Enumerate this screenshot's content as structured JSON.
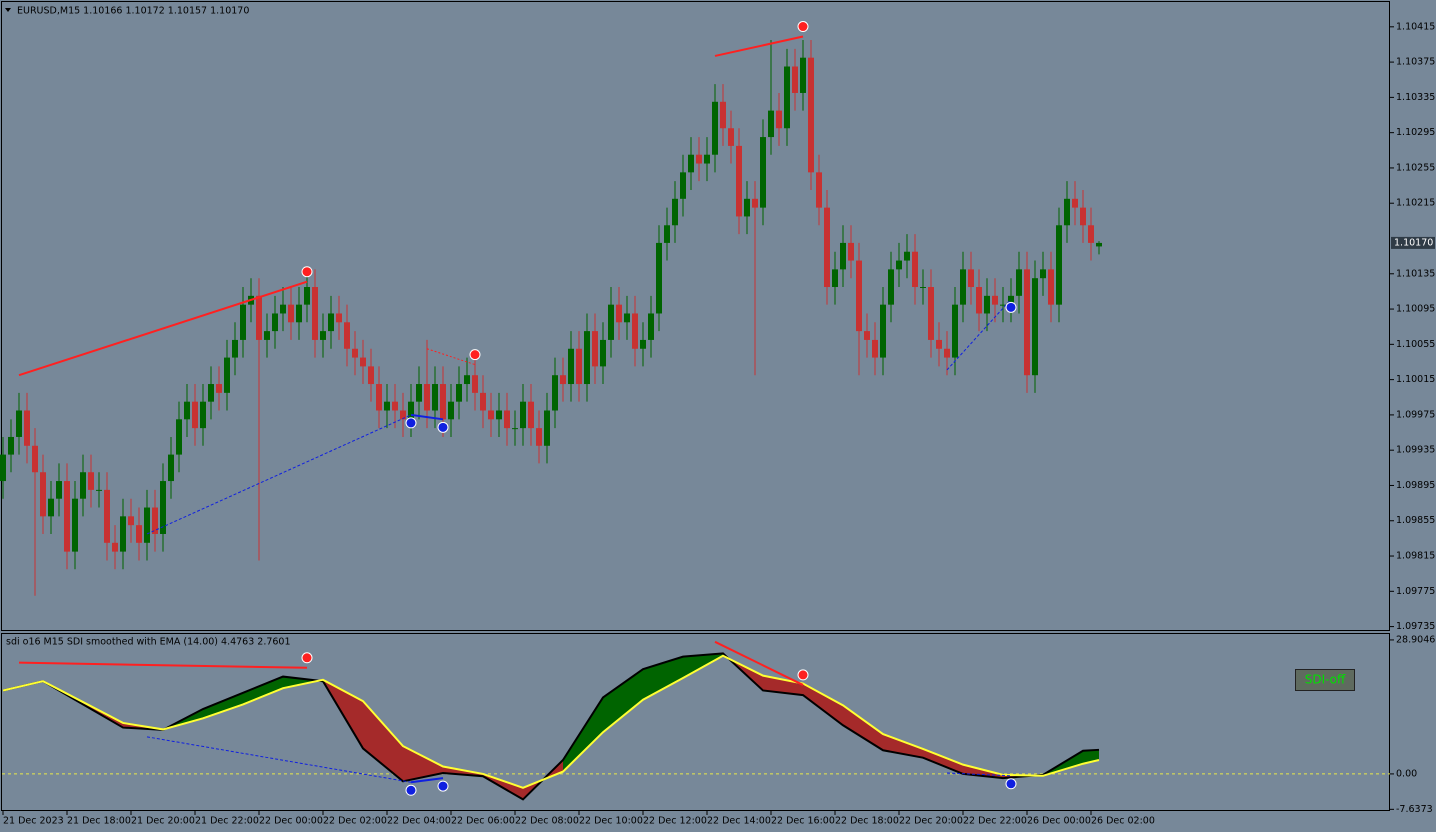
{
  "chart_data": [
    {
      "type": "candlestick",
      "title": "EURUSD,M15  1.10166 1.10172 1.10157 1.10170",
      "categories": [
        "21 Dec 2023",
        null,
        null,
        null,
        null,
        null,
        null,
        null,
        "21 Dec 18:00",
        null,
        null,
        null,
        null,
        null,
        null,
        null,
        "21 Dec 20:00",
        null,
        null,
        null,
        null,
        null,
        null,
        null,
        "21 Dec 22:00",
        null,
        null,
        null,
        null,
        null,
        null,
        null,
        "22 Dec 00:00",
        null,
        null,
        null,
        null,
        null,
        null,
        null,
        "22 Dec 02:00",
        null,
        null,
        null,
        null,
        null,
        null,
        null,
        "22 Dec 04:00",
        null,
        null,
        null,
        null,
        null,
        null,
        null,
        "22 Dec 06:00",
        null,
        null,
        null,
        null,
        null,
        null,
        null,
        "22 Dec 08:00",
        null,
        null,
        null,
        null,
        null,
        null,
        null,
        "22 Dec 10:00",
        null,
        null,
        null,
        null,
        null,
        null,
        null,
        "22 Dec 12:00",
        null,
        null,
        null,
        null,
        null,
        null,
        null,
        "22 Dec 14:00",
        null,
        null,
        null,
        null,
        null,
        null,
        null,
        "22 Dec 16:00",
        null,
        null,
        null,
        null,
        null,
        null,
        null,
        "22 Dec 18:00",
        null,
        null,
        null,
        null,
        null,
        null,
        null,
        "22 Dec 20:00",
        null,
        null,
        null,
        null,
        null,
        null,
        null,
        "22 Dec 22:00",
        null,
        null,
        null,
        null,
        null,
        null,
        null,
        "26 Dec 00:00",
        null,
        null,
        null,
        null,
        null,
        null,
        null,
        "26 Dec 02:00",
        null
      ],
      "open": [
        1.099,
        1.0993,
        1.0995,
        1.0998,
        1.0994,
        1.0991,
        1.0986,
        1.0988,
        1.099,
        1.0982,
        1.0988,
        1.0991,
        1.0989,
        1.0989,
        1.0983,
        1.0982,
        1.0986,
        1.0985,
        1.0983,
        1.0987,
        1.0984,
        1.099,
        1.0993,
        1.0997,
        1.0999,
        1.0996,
        1.0999,
        1.1001,
        1.1,
        1.1004,
        1.1006,
        1.101,
        1.1011,
        1.1006,
        1.1007,
        1.1009,
        1.101,
        1.1008,
        1.101,
        1.1012,
        1.1006,
        1.1007,
        1.1009,
        1.1008,
        1.1005,
        1.1004,
        1.1003,
        1.1001,
        1.0998,
        1.0999,
        1.0998,
        1.0997,
        1.0999,
        1.1001,
        1.0998,
        1.1001,
        1.0997,
        1.0999,
        1.1001,
        1.1002,
        1.1,
        1.0998,
        1.0997,
        1.0998,
        1.0996,
        1.0996,
        1.0999,
        1.0996,
        1.0994,
        1.0998,
        1.1002,
        1.1001,
        1.1005,
        1.1001,
        1.1007,
        1.1003,
        1.1006,
        1.101,
        1.1008,
        1.1009,
        1.1005,
        1.1006,
        1.1009,
        1.1017,
        1.1019,
        1.1022,
        1.1025,
        1.1027,
        1.1026,
        1.1027,
        1.1033,
        1.103,
        1.1028,
        1.102,
        1.1022,
        1.1021,
        1.1029,
        1.1032,
        1.103,
        1.1037,
        1.1034,
        1.1038,
        1.1025,
        1.1021,
        1.1012,
        1.1014,
        1.1017,
        1.1015,
        1.1007,
        1.1006,
        1.1004,
        1.101,
        1.1014,
        1.1015,
        1.1016,
        1.1012,
        1.1012,
        1.1006,
        1.1005,
        1.1004,
        1.101,
        1.1014,
        1.1012,
        1.1009,
        1.1011,
        1.101,
        1.101,
        1.1011,
        1.1014,
        1.1002,
        1.1013,
        1.1014,
        1.101,
        1.1019,
        1.1022,
        1.1021,
        1.1019,
        1.10166
      ],
      "high": [
        1.0995,
        1.0997,
        1.1,
        1.1,
        1.0996,
        1.0993,
        1.099,
        1.0992,
        1.0992,
        1.099,
        1.0993,
        1.0993,
        1.0991,
        1.0991,
        1.0985,
        1.0988,
        1.0988,
        1.0987,
        1.0989,
        1.0989,
        1.0992,
        1.0995,
        1.0999,
        1.1001,
        1.1001,
        1.1001,
        1.1003,
        1.1003,
        1.1006,
        1.1008,
        1.1012,
        1.1013,
        1.1013,
        1.1009,
        1.1011,
        1.1012,
        1.1012,
        1.1012,
        1.1014,
        1.1014,
        1.1009,
        1.1011,
        1.1011,
        1.101,
        1.1007,
        1.1006,
        1.1005,
        1.1003,
        1.1001,
        1.1001,
        1.1,
        1.1001,
        1.1003,
        1.1006,
        1.1003,
        1.1003,
        1.1001,
        1.1003,
        1.1004,
        1.1004,
        1.1002,
        1.1,
        1.1,
        1.1,
        1.0998,
        1.1001,
        1.1001,
        1.0998,
        1.1,
        1.1004,
        1.1004,
        1.1007,
        1.1007,
        1.1009,
        1.1009,
        1.1008,
        1.1012,
        1.1012,
        1.1011,
        1.1011,
        1.1008,
        1.1011,
        1.1019,
        1.1021,
        1.1024,
        1.1027,
        1.1029,
        1.1029,
        1.1029,
        1.1035,
        1.1035,
        1.1032,
        1.103,
        1.1024,
        1.1024,
        1.1031,
        1.104,
        1.1034,
        1.1039,
        1.1039,
        1.104,
        1.104,
        1.1027,
        1.1023,
        1.1016,
        1.1019,
        1.1019,
        1.1017,
        1.1009,
        1.1008,
        1.1012,
        1.1016,
        1.1017,
        1.1018,
        1.1018,
        1.1014,
        1.1014,
        1.1008,
        1.1007,
        1.1012,
        1.1016,
        1.1016,
        1.1014,
        1.1013,
        1.1013,
        1.1012,
        1.1013,
        1.1016,
        1.1016,
        1.1015,
        1.1016,
        1.1016,
        1.1021,
        1.1024,
        1.1024,
        1.1023,
        1.1021,
        1.10172
      ],
      "low": [
        1.0988,
        1.0991,
        1.0993,
        1.0992,
        1.0977,
        1.0984,
        1.0984,
        1.0986,
        1.098,
        1.098,
        1.0986,
        1.0987,
        1.0987,
        1.0981,
        1.098,
        1.098,
        1.0983,
        1.0981,
        1.0981,
        1.0982,
        1.0982,
        1.0988,
        1.0991,
        1.0995,
        1.0994,
        1.0994,
        1.0997,
        1.0998,
        1.0998,
        1.1002,
        1.1004,
        1.1008,
        1.0981,
        1.1004,
        1.1005,
        1.1007,
        1.1006,
        1.1006,
        1.1008,
        1.1004,
        1.1004,
        1.1005,
        1.1006,
        1.1003,
        1.1002,
        1.1001,
        1.0999,
        1.0996,
        1.0996,
        1.0996,
        1.0995,
        1.0995,
        1.0997,
        1.0996,
        1.0996,
        1.0995,
        1.0995,
        1.0997,
        1.0999,
        1.0998,
        1.0996,
        1.0995,
        1.0995,
        1.0994,
        1.0994,
        1.0994,
        1.0994,
        1.0992,
        1.0992,
        1.0996,
        1.0999,
        1.0999,
        1.0999,
        1.0999,
        1.1001,
        1.1001,
        1.1004,
        1.1006,
        1.1006,
        1.1003,
        1.1003,
        1.1004,
        1.1007,
        1.1015,
        1.1017,
        1.102,
        1.1023,
        1.1024,
        1.1024,
        1.1025,
        1.1028,
        1.1026,
        1.1018,
        1.1018,
        1.1002,
        1.1019,
        1.1027,
        1.1028,
        1.1028,
        1.1032,
        1.1032,
        1.1023,
        1.1019,
        1.101,
        1.101,
        1.1012,
        1.1013,
        1.1002,
        1.1004,
        1.1002,
        1.1002,
        1.1008,
        1.1012,
        1.1013,
        1.101,
        1.101,
        1.1004,
        1.1003,
        1.1002,
        1.1002,
        1.1008,
        1.101,
        1.1007,
        1.1007,
        1.1008,
        1.1008,
        1.1008,
        1.1009,
        1.1,
        1.1,
        1.1011,
        1.1008,
        1.1008,
        1.1017,
        1.1019,
        1.1017,
        1.1015,
        1.10157
      ],
      "close": [
        1.0993,
        1.0995,
        1.0998,
        1.0994,
        1.0991,
        1.0986,
        1.0988,
        1.099,
        1.0982,
        1.0988,
        1.0991,
        1.0989,
        1.0989,
        1.0983,
        1.0982,
        1.0986,
        1.0985,
        1.0983,
        1.0987,
        1.0984,
        1.099,
        1.0993,
        1.0997,
        1.0999,
        1.0996,
        1.0999,
        1.1001,
        1.1,
        1.1004,
        1.1006,
        1.101,
        1.1011,
        1.1006,
        1.1007,
        1.1009,
        1.101,
        1.1008,
        1.101,
        1.1012,
        1.1006,
        1.1007,
        1.1009,
        1.1008,
        1.1005,
        1.1004,
        1.1003,
        1.1001,
        1.0998,
        1.0999,
        1.0998,
        1.0997,
        1.0999,
        1.1001,
        1.0998,
        1.1001,
        1.0997,
        1.0999,
        1.1001,
        1.1002,
        1.1,
        1.0998,
        1.0997,
        1.0998,
        1.0996,
        1.0996,
        1.0999,
        1.0996,
        1.0994,
        1.0998,
        1.1002,
        1.1001,
        1.1005,
        1.1001,
        1.1007,
        1.1003,
        1.1006,
        1.101,
        1.1008,
        1.1009,
        1.1005,
        1.1006,
        1.1009,
        1.1017,
        1.1019,
        1.1022,
        1.1025,
        1.1027,
        1.1026,
        1.1027,
        1.1033,
        1.103,
        1.1028,
        1.102,
        1.1022,
        1.1021,
        1.1029,
        1.1032,
        1.103,
        1.1037,
        1.1034,
        1.1038,
        1.1025,
        1.1021,
        1.1012,
        1.1014,
        1.1017,
        1.1015,
        1.1007,
        1.1006,
        1.1004,
        1.101,
        1.1014,
        1.1015,
        1.1016,
        1.1012,
        1.1012,
        1.1006,
        1.1005,
        1.1004,
        1.101,
        1.1014,
        1.1012,
        1.1009,
        1.1011,
        1.101,
        1.101,
        1.1011,
        1.1014,
        1.1002,
        1.1013,
        1.1014,
        1.101,
        1.1019,
        1.1022,
        1.1021,
        1.1019,
        1.1017,
        1.1017
      ],
      "up_color": "#006400",
      "down_color": "#c83232",
      "ylim": [
        1.0973,
        1.10442
      ],
      "yticks": [
        1.10415,
        1.10375,
        1.10335,
        1.10295,
        1.10255,
        1.10215,
        1.10135,
        1.10095,
        1.10055,
        1.10015,
        1.09975,
        1.09935,
        1.09895,
        1.09855,
        1.09815,
        1.09775,
        1.09735
      ],
      "price_label": {
        "value": 1.1017,
        "label": "1.10170"
      },
      "divergences": [
        {
          "x": [
            2,
            38
          ],
          "y": [
            1.1002,
            1.10126
          ],
          "color": "#ff2020",
          "dash": "none"
        },
        {
          "x": [
            89,
            100
          ],
          "y": [
            1.10382,
            1.10404
          ],
          "color": "#ff2020",
          "dash": "none"
        },
        {
          "x": [
            18,
            51
          ],
          "y": [
            1.0984,
            1.09975
          ],
          "color": "#1020e0",
          "dash": "3 2"
        },
        {
          "x": [
            51,
            55
          ],
          "y": [
            1.09975,
            1.0997
          ],
          "color": "#1020e0",
          "dash": "none"
        },
        {
          "x": [
            53,
            59
          ],
          "y": [
            1.1005,
            1.10032
          ],
          "color": "#ff2020",
          "dash": "2 2"
        },
        {
          "x": [
            118,
            126
          ],
          "y": [
            1.10026,
            1.10106
          ],
          "color": "#1020e0",
          "dash": "3 2"
        }
      ]
    },
    {
      "type": "line",
      "title": "sdi o16 M15 SDI smoothed with EMA (14.00) 4.4763 2.7601",
      "x": [
        0,
        5,
        10,
        15,
        20,
        25,
        30,
        35,
        40,
        45,
        50,
        55,
        60,
        65,
        70,
        75,
        80,
        85,
        90,
        95,
        100,
        105,
        110,
        115,
        120,
        125,
        130,
        135,
        137
      ],
      "series": [
        {
          "color": "#000000",
          "values": [
            18,
            20,
            15,
            10,
            9.5,
            14,
            17.5,
            21,
            20,
            5.5,
            -1.6,
            0.2,
            -0.5,
            -5.5,
            3,
            16.5,
            22.6,
            25.3,
            26,
            18,
            17,
            10.5,
            5.1,
            3.5,
            0,
            -0.9,
            -0.2,
            5,
            5.2
          ]
        },
        {
          "color": "#ffff33",
          "values": [
            18,
            20,
            15.5,
            11,
            9.6,
            12,
            15,
            18.5,
            20.3,
            15.7,
            6,
            1.6,
            0,
            -3,
            0.5,
            9,
            16,
            20.7,
            25.5,
            21.2,
            19.5,
            14.8,
            8.6,
            5.4,
            2,
            -0.2,
            -0.4,
            2.2,
            3
          ]
        }
      ],
      "fill_up_color": "#006400",
      "fill_down_color": "#a52a2a",
      "ylim": [
        -8.0,
        30.4
      ],
      "yticks": [
        28.9046,
        {
          "value": 0,
          "label": "0.00"
        },
        -7.6373
      ],
      "levels": [
        0
      ],
      "level_color": "#e8e84a",
      "divergences": [
        {
          "x": [
            2,
            38
          ],
          "y": [
            24,
            22.9
          ],
          "color": "#ff2020",
          "dash": "none"
        },
        {
          "x": [
            89,
            100
          ],
          "y": [
            28.5,
            19.2
          ],
          "color": "#ff2020",
          "dash": "none"
        },
        {
          "x": [
            18,
            51
          ],
          "y": [
            8,
            -1.8
          ],
          "color": "#1020e0",
          "dash": "3 2"
        },
        {
          "x": [
            51,
            55
          ],
          "y": [
            -1.8,
            -0.9
          ],
          "color": "#1020e0",
          "dash": "none"
        },
        {
          "x": [
            118,
            126
          ],
          "y": [
            0.2,
            -0.4
          ],
          "color": "#1020e0",
          "dash": "3 2"
        }
      ],
      "button": "SDI-off"
    }
  ]
}
